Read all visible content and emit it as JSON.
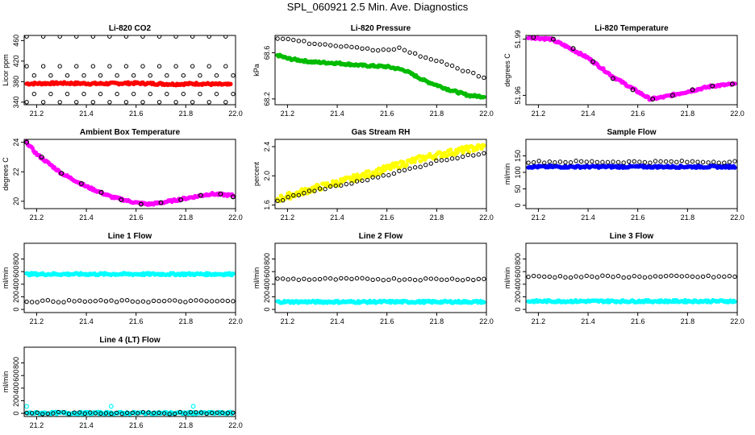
{
  "page_title": "SPL_060921  2.5 Min. Ave. Diagnostics",
  "chart_data": [
    {
      "id": "co2",
      "type": "scatter",
      "title": "Li-820 CO2",
      "ylabel": "Licor ppm",
      "xlim": [
        21.15,
        22.0
      ],
      "xticks": [
        "21.2",
        "21.4",
        "21.6",
        "21.8",
        "22.0"
      ],
      "ylim": [
        335,
        470
      ],
      "yticks": [
        "340",
        "380",
        "420",
        "460"
      ],
      "series": [
        {
          "name": "co2",
          "color": "#ff0000",
          "style": "dense",
          "points": [
            [
              21.16,
              376
            ],
            [
              21.3,
              377
            ],
            [
              21.45,
              376
            ],
            [
              21.6,
              377
            ],
            [
              21.75,
              375
            ],
            [
              21.85,
              376
            ],
            [
              21.98,
              374
            ]
          ]
        },
        {
          "name": "co2_480",
          "color": "#000000",
          "style": "open-grid",
          "x_step": 0.0667,
          "x_start": 21.16,
          "y_values": [
            468,
            410,
            340
          ]
        },
        {
          "name": "co2_400",
          "color": "#000000",
          "style": "open-grid",
          "x_step": 0.0667,
          "x_start": 21.19,
          "y_values": [
            392,
            356
          ]
        }
      ]
    },
    {
      "id": "pressure",
      "type": "scatter",
      "title": "Li-820 Pressure",
      "ylabel": "kPa",
      "xlim": [
        21.15,
        22.0
      ],
      "xticks": [
        "21.2",
        "21.4",
        "21.6",
        "21.8",
        "22.0"
      ],
      "ylim": [
        68.15,
        68.75
      ],
      "yticks": [
        "68.2",
        "68.6"
      ],
      "series": [
        {
          "name": "pressure",
          "color": "#00bb00",
          "style": "dense",
          "points": [
            [
              21.16,
              68.58
            ],
            [
              21.2,
              68.55
            ],
            [
              21.3,
              68.52
            ],
            [
              21.4,
              68.51
            ],
            [
              21.5,
              68.49
            ],
            [
              21.6,
              68.48
            ],
            [
              21.67,
              68.45
            ],
            [
              21.75,
              68.36
            ],
            [
              21.85,
              68.28
            ],
            [
              21.93,
              68.23
            ],
            [
              21.99,
              68.22
            ]
          ]
        },
        {
          "name": "pressure_black",
          "color": "#000000",
          "style": "open",
          "points": [
            [
              21.16,
              68.73
            ],
            [
              21.2,
              68.72
            ],
            [
              21.25,
              68.7
            ],
            [
              21.3,
              68.68
            ],
            [
              21.35,
              68.68
            ],
            [
              21.4,
              68.66
            ],
            [
              21.45,
              68.66
            ],
            [
              21.5,
              68.64
            ],
            [
              21.55,
              68.62
            ],
            [
              21.6,
              68.62
            ],
            [
              21.65,
              68.64
            ],
            [
              21.7,
              68.6
            ],
            [
              21.75,
              68.56
            ],
            [
              21.8,
              68.53
            ],
            [
              21.85,
              68.5
            ],
            [
              21.9,
              68.45
            ],
            [
              21.95,
              68.42
            ],
            [
              21.99,
              68.38
            ]
          ]
        }
      ]
    },
    {
      "id": "li_temp",
      "type": "scatter",
      "title": "Li-820 Temperature",
      "ylabel": "degrees C",
      "xlim": [
        21.15,
        22.0
      ],
      "xticks": [
        "21.2",
        "21.4",
        "21.6",
        "21.8",
        "22.0"
      ],
      "ylim": [
        51.955,
        51.992
      ],
      "yticks": [
        "51.96",
        "51.99"
      ],
      "series": [
        {
          "name": "li_temp",
          "color": "#ff00ff",
          "style": "dense",
          "points": [
            [
              21.16,
              51.991
            ],
            [
              21.25,
              51.99
            ],
            [
              21.3,
              51.987
            ],
            [
              21.4,
              51.98
            ],
            [
              21.5,
              51.97
            ],
            [
              21.6,
              51.962
            ],
            [
              21.65,
              51.958
            ],
            [
              21.7,
              51.959
            ],
            [
              21.8,
              51.962
            ],
            [
              21.9,
              51.965
            ],
            [
              21.99,
              51.966
            ]
          ]
        },
        {
          "name": "li_temp_black",
          "color": "#000000",
          "style": "sparse",
          "points": [
            [
              21.18,
              51.991
            ],
            [
              21.26,
              51.99
            ],
            [
              21.34,
              51.985
            ],
            [
              21.42,
              51.978
            ],
            [
              21.5,
              51.969
            ],
            [
              21.58,
              51.963
            ],
            [
              21.66,
              51.958
            ],
            [
              21.74,
              51.96
            ],
            [
              21.82,
              51.963
            ],
            [
              21.9,
              51.965
            ],
            [
              21.98,
              51.966
            ]
          ]
        }
      ]
    },
    {
      "id": "box_temp",
      "type": "scatter",
      "title": "Ambient Box Temperature",
      "ylabel": "degrees C",
      "xlim": [
        21.15,
        22.0
      ],
      "xticks": [
        "21.2",
        "21.4",
        "21.6",
        "21.8",
        "22.0"
      ],
      "ylim": [
        19.5,
        24.2
      ],
      "yticks": [
        "20",
        "22",
        "24"
      ],
      "series": [
        {
          "name": "box_temp",
          "color": "#ff00ff",
          "style": "dense",
          "points": [
            [
              21.16,
              24.0
            ],
            [
              21.2,
              23.2
            ],
            [
              21.3,
              21.9
            ],
            [
              21.4,
              21.0
            ],
            [
              21.5,
              20.3
            ],
            [
              21.6,
              19.9
            ],
            [
              21.65,
              19.8
            ],
            [
              21.7,
              19.9
            ],
            [
              21.8,
              20.2
            ],
            [
              21.9,
              20.5
            ],
            [
              21.99,
              20.4
            ]
          ]
        },
        {
          "name": "box_temp_black",
          "color": "#000000",
          "style": "sparse",
          "points": [
            [
              21.16,
              24.0
            ],
            [
              21.22,
              23.0
            ],
            [
              21.3,
              21.9
            ],
            [
              21.38,
              21.2
            ],
            [
              21.46,
              20.6
            ],
            [
              21.54,
              20.1
            ],
            [
              21.62,
              19.8
            ],
            [
              21.7,
              19.9
            ],
            [
              21.78,
              20.1
            ],
            [
              21.86,
              20.4
            ],
            [
              21.94,
              20.5
            ],
            [
              21.99,
              20.3
            ]
          ]
        }
      ]
    },
    {
      "id": "rh",
      "type": "scatter",
      "title": "Gas Stream RH",
      "ylabel": "percent",
      "xlim": [
        21.15,
        22.0
      ],
      "xticks": [
        "21.2",
        "21.4",
        "21.6",
        "21.8",
        "22.0"
      ],
      "ylim": [
        1.55,
        2.5
      ],
      "yticks": [
        "1.6",
        "2.0",
        "2.4"
      ],
      "series": [
        {
          "name": "rh",
          "color": "#ffff00",
          "style": "dense-noisy",
          "points": [
            [
              21.16,
              1.68
            ],
            [
              21.3,
              1.82
            ],
            [
              21.45,
              1.95
            ],
            [
              21.6,
              2.1
            ],
            [
              21.75,
              2.25
            ],
            [
              21.9,
              2.35
            ],
            [
              21.99,
              2.4
            ]
          ]
        },
        {
          "name": "rh_black",
          "color": "#000000",
          "style": "open",
          "points": [
            [
              21.16,
              1.65
            ],
            [
              21.22,
              1.72
            ],
            [
              21.28,
              1.78
            ],
            [
              21.34,
              1.82
            ],
            [
              21.4,
              1.86
            ],
            [
              21.46,
              1.9
            ],
            [
              21.52,
              1.95
            ],
            [
              21.58,
              2.0
            ],
            [
              21.64,
              2.05
            ],
            [
              21.7,
              2.1
            ],
            [
              21.76,
              2.16
            ],
            [
              21.82,
              2.22
            ],
            [
              21.88,
              2.25
            ],
            [
              21.94,
              2.28
            ],
            [
              21.99,
              2.32
            ]
          ]
        }
      ]
    },
    {
      "id": "sample_flow",
      "type": "scatter",
      "title": "Sample Flow",
      "ylabel": "ml/min",
      "xlim": [
        21.15,
        22.0
      ],
      "xticks": [
        "21.2",
        "21.4",
        "21.6",
        "21.8",
        "22.0"
      ],
      "ylim": [
        -10,
        200
      ],
      "yticks": [
        "0",
        "50",
        "100",
        "150"
      ],
      "series": [
        {
          "name": "sample_flow",
          "color": "#0000ff",
          "style": "dense",
          "points": [
            [
              21.16,
              117
            ],
            [
              21.99,
              117
            ]
          ]
        },
        {
          "name": "sample_flow_black",
          "color": "#000000",
          "style": "open",
          "points": [
            [
              21.16,
              132
            ],
            [
              21.99,
              132
            ]
          ]
        }
      ]
    },
    {
      "id": "line1",
      "type": "scatter",
      "title": "Line 1 Flow",
      "ylabel": "ml/min",
      "xlim": [
        21.15,
        22.0
      ],
      "xticks": [
        "21.2",
        "21.4",
        "21.6",
        "21.8",
        "22.0"
      ],
      "ylim": [
        -50,
        1050
      ],
      "yticks": [
        "0",
        "200",
        "400",
        "600",
        "800"
      ],
      "series": [
        {
          "name": "line1_cyan",
          "color": "#00ffff",
          "style": "dense",
          "points": [
            [
              21.16,
              560
            ],
            [
              21.99,
              560
            ]
          ]
        },
        {
          "name": "line1_black",
          "color": "#000000",
          "style": "open",
          "points": [
            [
              21.16,
              130
            ],
            [
              21.99,
              130
            ]
          ]
        }
      ]
    },
    {
      "id": "line2",
      "type": "scatter",
      "title": "Line 2 Flow",
      "ylabel": "ml/min",
      "xlim": [
        21.15,
        22.0
      ],
      "xticks": [
        "21.2",
        "21.4",
        "21.6",
        "21.8",
        "22.0"
      ],
      "ylim": [
        -50,
        1050
      ],
      "yticks": [
        "0",
        "200",
        "400",
        "600",
        "800"
      ],
      "series": [
        {
          "name": "line2_cyan",
          "color": "#00ffff",
          "style": "dense",
          "points": [
            [
              21.16,
              120
            ],
            [
              21.99,
              120
            ]
          ]
        },
        {
          "name": "line2_black",
          "color": "#000000",
          "style": "open",
          "points": [
            [
              21.16,
              480
            ],
            [
              21.99,
              480
            ]
          ]
        }
      ]
    },
    {
      "id": "line3",
      "type": "scatter",
      "title": "Line 3 Flow",
      "ylabel": "ml/min",
      "xlim": [
        21.15,
        22.0
      ],
      "xticks": [
        "21.2",
        "21.4",
        "21.6",
        "21.8",
        "22.0"
      ],
      "ylim": [
        -50,
        1050
      ],
      "yticks": [
        "0",
        "200",
        "400",
        "600",
        "800"
      ],
      "series": [
        {
          "name": "line3_cyan",
          "color": "#00ffff",
          "style": "dense",
          "points": [
            [
              21.16,
              130
            ],
            [
              21.99,
              130
            ]
          ]
        },
        {
          "name": "line3_black",
          "color": "#000000",
          "style": "open",
          "points": [
            [
              21.16,
              520
            ],
            [
              21.99,
              520
            ]
          ]
        }
      ]
    },
    {
      "id": "line4",
      "type": "scatter",
      "title": "Line 4 (LT) Flow",
      "ylabel": "ml/min",
      "xlim": [
        21.15,
        22.0
      ],
      "xticks": [
        "21.2",
        "21.4",
        "21.6",
        "21.8",
        "22.0"
      ],
      "ylim": [
        -50,
        1050
      ],
      "yticks": [
        "0",
        "200",
        "400",
        "600",
        "800"
      ],
      "series": [
        {
          "name": "line4_cyan",
          "color": "#00ffff",
          "style": "dense",
          "points": [
            [
              21.16,
              5
            ],
            [
              21.99,
              5
            ]
          ]
        },
        {
          "name": "line4_black",
          "color": "#000000",
          "style": "open",
          "points": [
            [
              21.16,
              5
            ],
            [
              21.99,
              5
            ]
          ]
        },
        {
          "name": "line4_spikes",
          "color": "#00ffff",
          "style": "sparse",
          "points": [
            [
              21.16,
              110
            ],
            [
              21.5,
              110
            ],
            [
              21.83,
              110
            ]
          ]
        }
      ]
    }
  ]
}
